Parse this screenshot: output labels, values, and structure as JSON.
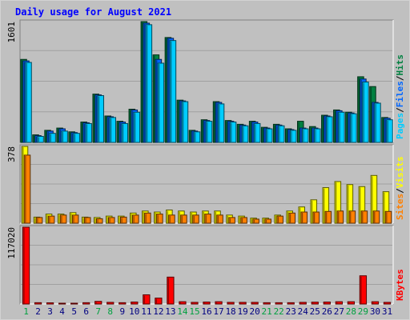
{
  "chart_data": [
    {
      "type": "bar",
      "title": "Daily usage for August 2021",
      "ylabel_top": "1601",
      "legend": [
        {
          "name": "Pages",
          "color": "#00ccff"
        },
        {
          "name": "Files",
          "color": "#0066ff"
        },
        {
          "name": "Hits",
          "color": "#008040"
        }
      ],
      "legend_separator": "/",
      "ylim": [
        0,
        1601
      ],
      "categories": [
        "1",
        "2",
        "3",
        "4",
        "5",
        "6",
        "7",
        "8",
        "9",
        "10",
        "11",
        "12",
        "13",
        "14",
        "15",
        "16",
        "17",
        "18",
        "19",
        "20",
        "21",
        "22",
        "23",
        "24",
        "25",
        "26",
        "27",
        "28",
        "29",
        "30",
        "31"
      ],
      "series": [
        {
          "name": "Hits",
          "values": [
            1100,
            100,
            160,
            190,
            140,
            270,
            640,
            350,
            280,
            440,
            1601,
            1160,
            1390,
            560,
            160,
            300,
            540,
            290,
            240,
            280,
            200,
            240,
            180,
            280,
            210,
            360,
            430,
            400,
            870,
            740,
            330
          ]
        },
        {
          "name": "Files",
          "values": [
            1080,
            90,
            150,
            180,
            130,
            260,
            630,
            340,
            270,
            430,
            1580,
            1100,
            1380,
            550,
            150,
            290,
            530,
            280,
            230,
            270,
            190,
            230,
            170,
            190,
            190,
            350,
            420,
            390,
            840,
            530,
            320
          ]
        },
        {
          "name": "Pages",
          "values": [
            1060,
            80,
            120,
            150,
            120,
            250,
            620,
            330,
            250,
            400,
            1560,
            1050,
            1350,
            540,
            140,
            280,
            510,
            270,
            220,
            250,
            180,
            220,
            160,
            180,
            180,
            340,
            400,
            380,
            800,
            520,
            300
          ]
        }
      ]
    },
    {
      "type": "bar",
      "ylabel_top": "378",
      "legend": [
        {
          "name": "Sites",
          "color": "#ff8000"
        },
        {
          "name": "Visits",
          "color": "#ffff00"
        }
      ],
      "legend_separator": "/",
      "ylim": [
        0,
        378
      ],
      "categories": [
        "1",
        "2",
        "3",
        "4",
        "5",
        "6",
        "7",
        "8",
        "9",
        "10",
        "11",
        "12",
        "13",
        "14",
        "15",
        "16",
        "17",
        "18",
        "19",
        "20",
        "21",
        "22",
        "23",
        "24",
        "25",
        "26",
        "27",
        "28",
        "29",
        "30",
        "31"
      ],
      "series": [
        {
          "name": "Visits",
          "values": [
            378,
            30,
            45,
            45,
            52,
            30,
            28,
            35,
            35,
            50,
            60,
            55,
            65,
            60,
            55,
            60,
            60,
            40,
            35,
            25,
            25,
            40,
            60,
            80,
            115,
            175,
            205,
            190,
            180,
            235,
            155
          ]
        },
        {
          "name": "Sites",
          "values": [
            335,
            28,
            35,
            40,
            40,
            28,
            22,
            28,
            30,
            40,
            50,
            45,
            40,
            40,
            40,
            45,
            40,
            28,
            28,
            20,
            20,
            35,
            50,
            55,
            55,
            58,
            60,
            60,
            60,
            60,
            58
          ]
        }
      ]
    },
    {
      "type": "bar",
      "ylabel_top": "117020",
      "legend": [
        {
          "name": "KBytes",
          "color": "#ff0000"
        }
      ],
      "ylim": [
        0,
        117020
      ],
      "categories": [
        "1",
        "2",
        "3",
        "4",
        "5",
        "6",
        "7",
        "8",
        "9",
        "10",
        "11",
        "12",
        "13",
        "14",
        "15",
        "16",
        "17",
        "18",
        "19",
        "20",
        "21",
        "22",
        "23",
        "24",
        "25",
        "26",
        "27",
        "28",
        "29",
        "30",
        "31"
      ],
      "x_label_colors": {
        "weekday": "#000080",
        "weekend": "#00a040"
      },
      "weekend_days": [
        "1",
        "7",
        "8",
        "14",
        "15",
        "21",
        "22",
        "28",
        "29"
      ],
      "series": [
        {
          "name": "KBytes",
          "values": [
            117020,
            2000,
            1800,
            1200,
            1200,
            2000,
            4000,
            2500,
            2000,
            3000,
            14000,
            9000,
            41000,
            3500,
            2500,
            3000,
            3500,
            2500,
            2500,
            2500,
            2000,
            2000,
            2000,
            2500,
            2800,
            3000,
            3500,
            3500,
            43000,
            3500,
            2500
          ]
        }
      ]
    }
  ]
}
